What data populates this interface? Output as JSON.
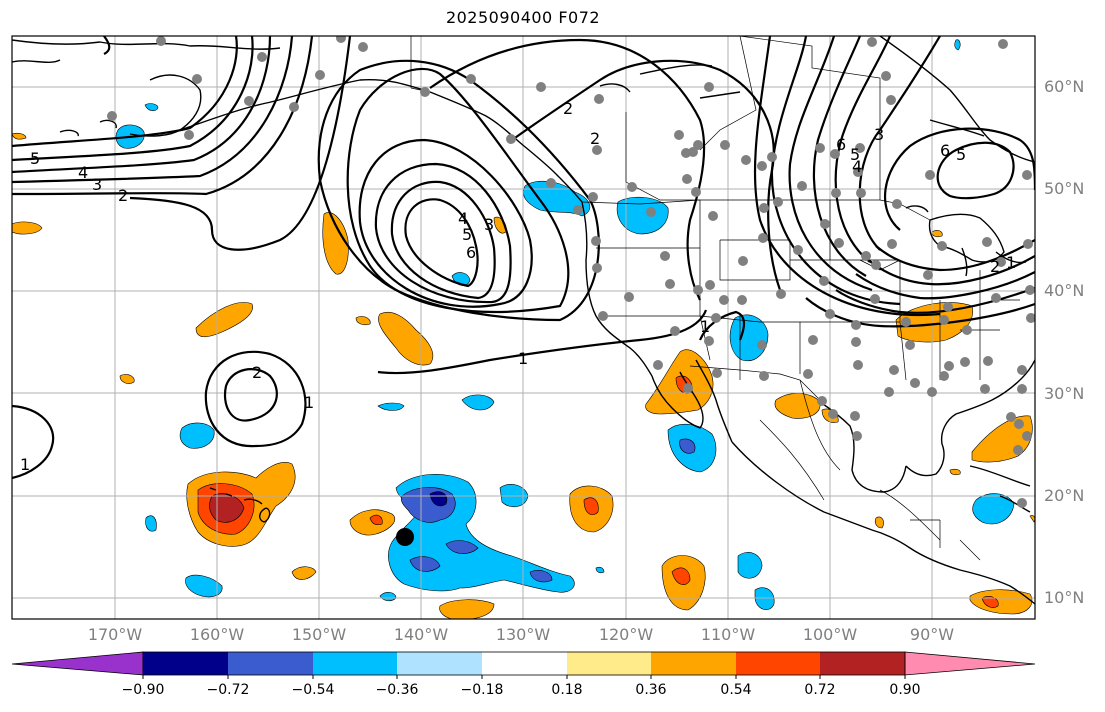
{
  "title": "2025090400 F072",
  "latitude_labels": [
    "60°N",
    "50°N",
    "40°N",
    "30°N",
    "20°N",
    "10°N"
  ],
  "longitude_labels": [
    "170°W",
    "160°W",
    "150°W",
    "140°W",
    "130°W",
    "120°W",
    "110°W",
    "100°W",
    "90°W"
  ],
  "colorbar": {
    "tick_labels": [
      "−0.90",
      "−0.72",
      "−0.54",
      "−0.36",
      "−0.18",
      "0.18",
      "0.36",
      "0.54",
      "0.72",
      "0.90"
    ],
    "colors": [
      "#9932cc",
      "#00008b",
      "#3a5ccf",
      "#00bfff",
      "#aee2ff",
      "#ffffff",
      "#ffeb8a",
      "#ffa500",
      "#ff4500",
      "#b22222",
      "#ff8cb0"
    ]
  },
  "contour_labels": [
    "5",
    "4",
    "3",
    "2",
    "1",
    "2",
    "1",
    "1",
    "2",
    "3",
    "4",
    "5",
    "6",
    "2",
    "1",
    "6",
    "5",
    "4",
    "3",
    "2",
    "1",
    "6",
    "5"
  ],
  "colors": {
    "gray_dot": "#808080",
    "contour": "#000000",
    "grid": "#b0b0b0"
  }
}
